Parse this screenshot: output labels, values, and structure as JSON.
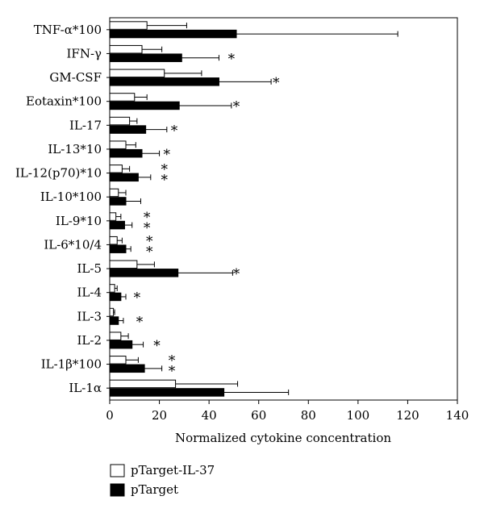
{
  "chart_data": {
    "type": "bar",
    "orientation": "horizontal",
    "categories": [
      "TNF-α*100",
      "IFN-γ",
      "GM-CSF",
      "Eotaxin*100",
      "IL-17",
      "IL-13*10",
      "IL-12(p70)*10",
      "IL-10*100",
      "IL-9*10",
      "IL-6*10/4",
      "IL-5",
      "IL-4",
      "IL-3",
      "IL-2",
      "IL-1β*100",
      "IL-1α"
    ],
    "series": [
      {
        "name": "pTarget-IL-37",
        "color": "#ffffff",
        "values": [
          15,
          13,
          22,
          10,
          8,
          6.5,
          5,
          3.5,
          2.5,
          3,
          11,
          2,
          1.5,
          4.5,
          6.5,
          26.5
        ],
        "errors": [
          16,
          8,
          15,
          5,
          3,
          4,
          3,
          3,
          2,
          2,
          7,
          1,
          0.5,
          3,
          5,
          25
        ]
      },
      {
        "name": "pTarget",
        "color": "#000000",
        "values": [
          51,
          29,
          44,
          28,
          14.5,
          13,
          11.5,
          6.5,
          6,
          6.5,
          27.5,
          4.5,
          3.5,
          9,
          14,
          46
        ],
        "errors": [
          65,
          15,
          21,
          21,
          8.5,
          7,
          5,
          6,
          3,
          2,
          22,
          2,
          2,
          4.5,
          7,
          26
        ]
      }
    ],
    "annotations": [
      {
        "category": "IFN-γ",
        "text": "*",
        "x": 49
      },
      {
        "category": "GM-CSF",
        "text": "*",
        "x": 67
      },
      {
        "category": "Eotaxin*100",
        "text": "*",
        "x": 51
      },
      {
        "category": "IL-17",
        "text": "*",
        "x": 26
      },
      {
        "category": "IL-13*10",
        "text": "*",
        "x": 23
      },
      {
        "category": "IL-12(p70)*10",
        "text": "**",
        "x": 22
      },
      {
        "category": "IL-9*10",
        "text": "**",
        "x": 15
      },
      {
        "category": "IL-6*10/4",
        "text": "**",
        "x": 16
      },
      {
        "category": "IL-5",
        "text": "*",
        "x": 51
      },
      {
        "category": "IL-4",
        "text": "*",
        "x": 11
      },
      {
        "category": "IL-3",
        "text": "*",
        "x": 12
      },
      {
        "category": "IL-2",
        "text": "*",
        "x": 19
      },
      {
        "category": "IL-1β*100",
        "text": "**",
        "x": 25
      }
    ],
    "xlabel": "Normalized cytokine concentration",
    "ylabel": "",
    "xlim": [
      0,
      140
    ],
    "xticks": [
      0,
      20,
      40,
      60,
      80,
      100,
      120,
      140
    ],
    "grid": false,
    "legend": {
      "placement": "bottom-left",
      "entries": [
        "pTarget-IL-37",
        "pTarget"
      ]
    }
  }
}
